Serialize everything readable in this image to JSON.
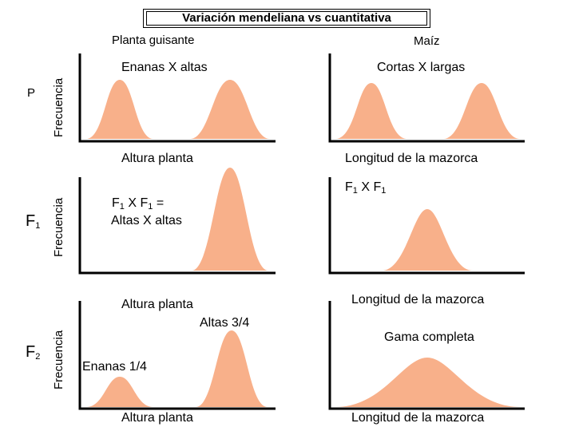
{
  "title": "Variación mendeliana vs cuantitativa",
  "columns": {
    "left": "Planta guisante",
    "right": "Maíz"
  },
  "rows": {
    "p": {
      "gen": "P",
      "ylabel": "Frecuencia"
    },
    "f1": {
      "gen_main": "F",
      "gen_sub": "1",
      "ylabel": "Frecuencia"
    },
    "f2": {
      "gen_main": "F",
      "gen_sub": "2",
      "ylabel": "Frecuencia"
    }
  },
  "panels": {
    "p_left": {
      "cross": "Enanas X altas",
      "xlabel": "Altura planta"
    },
    "p_right": {
      "cross": "Cortas X largas",
      "xlabel": "Longitud de la mazorca"
    },
    "f1_left": {
      "cross_line1_a": "F",
      "cross_line1_sub1": "1",
      "cross_line1_b": " X F",
      "cross_line1_sub2": "1",
      "cross_line1_c": " =",
      "cross_line2": "Altas X altas"
    },
    "f1_right": {
      "cross_a": "F",
      "cross_sub1": "1",
      "cross_b": " X F",
      "cross_sub2": "1",
      "xlabel": "Longitud de la mazorca"
    },
    "f2_left": {
      "xlabel_top": "Altura planta",
      "tall_label": "Altas 3/4",
      "dwarf_label": "Enanas 1/4",
      "xlabel": "Altura planta"
    },
    "f2_right": {
      "note": "Gama completa",
      "xlabel": "Longitud de la mazorca"
    }
  },
  "colors": {
    "curve_fill": "#f8b08a",
    "axis": "#000000"
  }
}
